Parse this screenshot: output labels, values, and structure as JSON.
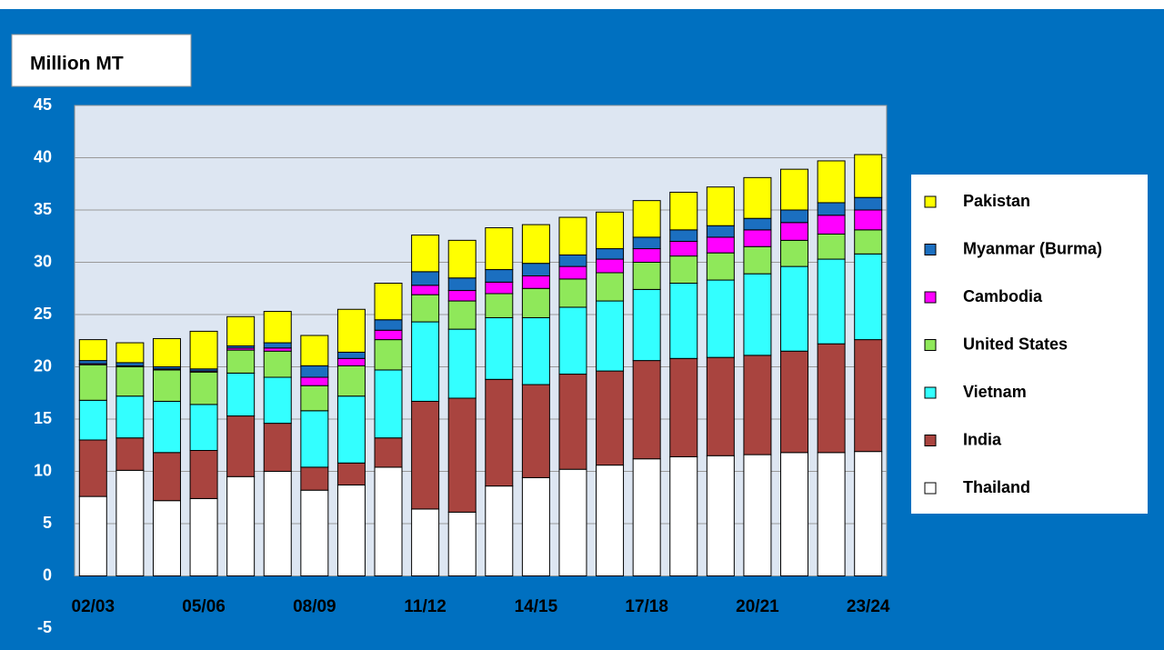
{
  "chart_data": {
    "type": "stacked_bar",
    "title": "Million MT",
    "categories": [
      "02/03",
      null,
      null,
      "05/06",
      null,
      null,
      "08/09",
      null,
      null,
      "11/12",
      null,
      null,
      "14/15",
      null,
      null,
      "17/18",
      null,
      null,
      "20/21",
      null,
      null,
      "23/24"
    ],
    "series": [
      {
        "name": "Thailand",
        "color": "#ffffff",
        "values": [
          7.6,
          10.1,
          7.2,
          7.4,
          9.5,
          10.0,
          8.2,
          8.7,
          10.4,
          6.4,
          6.1,
          8.6,
          9.4,
          10.2,
          10.6,
          11.2,
          11.4,
          11.5,
          11.6,
          11.8,
          11.8,
          11.9
        ]
      },
      {
        "name": "India",
        "color": "#a9443f",
        "values": [
          5.4,
          3.1,
          4.6,
          4.6,
          5.8,
          4.6,
          2.2,
          2.1,
          2.8,
          10.3,
          10.9,
          10.2,
          8.9,
          9.1,
          9.0,
          9.4,
          9.4,
          9.4,
          9.5,
          9.7,
          10.4,
          10.7
        ]
      },
      {
        "name": "Vietnam",
        "color": "#33ffff",
        "values": [
          3.8,
          4.0,
          4.9,
          4.4,
          4.1,
          4.4,
          5.4,
          6.4,
          6.5,
          7.6,
          6.6,
          5.9,
          6.4,
          6.4,
          6.7,
          6.8,
          7.2,
          7.4,
          7.8,
          8.1,
          8.1,
          8.2
        ]
      },
      {
        "name": "United States",
        "color": "#8fe85a",
        "values": [
          3.4,
          2.8,
          3.0,
          3.1,
          2.2,
          2.5,
          2.4,
          2.9,
          2.9,
          2.6,
          2.7,
          2.3,
          2.8,
          2.7,
          2.7,
          2.6,
          2.6,
          2.6,
          2.6,
          2.5,
          2.4,
          2.3
        ]
      },
      {
        "name": "Cambodia",
        "color": "#ff00ff",
        "values": [
          0.1,
          0.1,
          0.1,
          0.1,
          0.2,
          0.3,
          0.8,
          0.7,
          0.9,
          0.9,
          1.0,
          1.1,
          1.2,
          1.2,
          1.3,
          1.3,
          1.4,
          1.5,
          1.6,
          1.7,
          1.8,
          1.9
        ]
      },
      {
        "name": "Myanmar (Burma)",
        "color": "#1b6fc0",
        "values": [
          0.3,
          0.3,
          0.2,
          0.2,
          0.2,
          0.5,
          1.1,
          0.6,
          1.0,
          1.3,
          1.2,
          1.2,
          1.2,
          1.1,
          1.0,
          1.1,
          1.1,
          1.1,
          1.1,
          1.2,
          1.2,
          1.2
        ]
      },
      {
        "name": "Pakistan",
        "color": "#ffff00",
        "values": [
          2.0,
          1.9,
          2.7,
          3.6,
          2.8,
          3.0,
          2.9,
          4.1,
          3.5,
          3.5,
          3.6,
          4.0,
          3.7,
          3.6,
          3.5,
          3.5,
          3.6,
          3.7,
          3.9,
          3.9,
          4.0,
          4.1
        ]
      }
    ],
    "ylim": [
      -5,
      45
    ],
    "yticks": [
      -5,
      0,
      5,
      10,
      15,
      20,
      25,
      30,
      35,
      40,
      45
    ],
    "grid": true,
    "legend": "right"
  }
}
